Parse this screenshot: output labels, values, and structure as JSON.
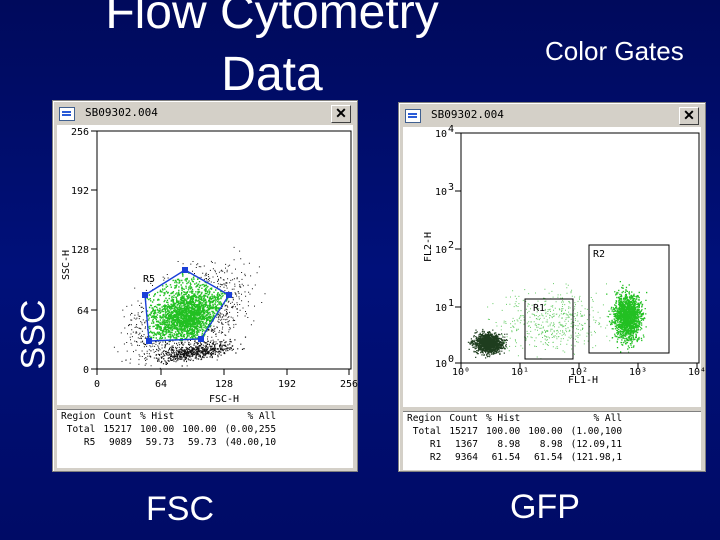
{
  "slide": {
    "title": "Flow Cytometry Data",
    "subtitle": "Color Gates",
    "ssc_label": "SSC",
    "fsc_label": "FSC",
    "gfp_label": "GFP"
  },
  "window1": {
    "title": "SB09302.004",
    "ylabel": "SSC-H",
    "xlabel": "FSC-H",
    "yticks": [
      "256",
      "192",
      "128",
      "64",
      "0"
    ],
    "xticks": [
      "0",
      "64",
      "128",
      "192",
      "256"
    ],
    "gate_label": "R5",
    "stats_headers": [
      "Region",
      "Count",
      "% Hist",
      "% All"
    ],
    "stats_rows": [
      [
        "Total",
        "15217",
        "100.00",
        "100.00",
        "(0.00,255"
      ],
      [
        "R5",
        "9089",
        "59.73",
        "59.73",
        "(40.00,10"
      ]
    ]
  },
  "window2": {
    "title": "SB09302.004",
    "ylabel": "FL2-H",
    "xlabel": "FL1-H",
    "ytick_bases": [
      "10",
      "10",
      "10",
      "10",
      "10"
    ],
    "ytick_exps": [
      "4",
      "3",
      "2",
      "1",
      "0"
    ],
    "xticks": [
      "10⁰",
      "10¹",
      "10²",
      "10³",
      "10⁴"
    ],
    "gate_labels": [
      "R1",
      "R2"
    ],
    "stats_headers": [
      "Region",
      "Count",
      "% Hist",
      "% All"
    ],
    "stats_rows": [
      [
        "Total",
        "15217",
        "100.00",
        "100.00",
        "(1.00,100"
      ],
      [
        "R1",
        "1367",
        "8.98",
        "8.98",
        "(12.09,11"
      ],
      [
        "R2",
        "9364",
        "61.54",
        "61.54",
        "(121.98,1"
      ]
    ]
  },
  "colors": {
    "background": "#000c66",
    "gate_green": "#22c022",
    "handle_blue": "#1a3fd8"
  }
}
